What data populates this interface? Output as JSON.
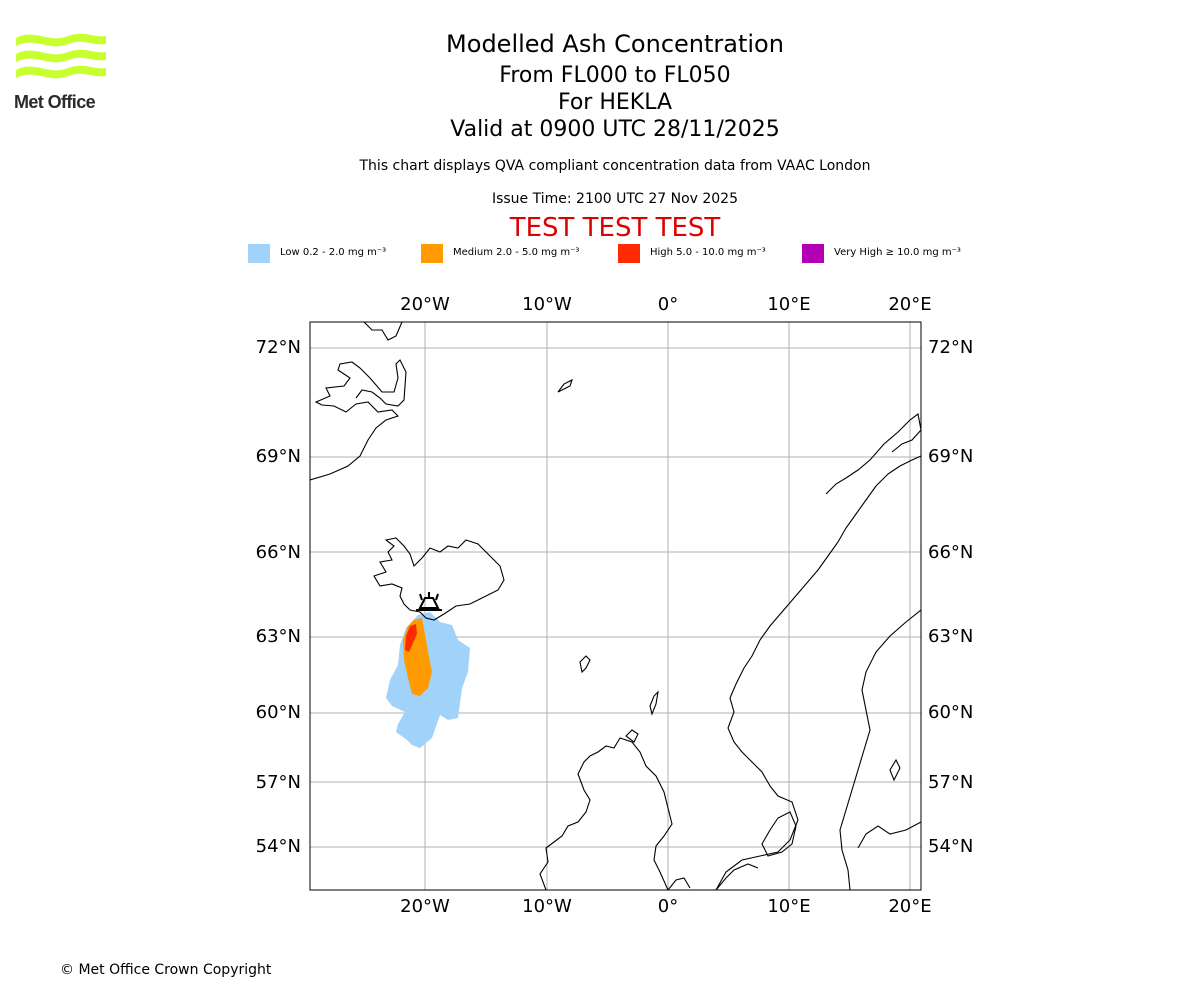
{
  "logo": {
    "name": "Met Office",
    "wave_color": "#c8ff2e"
  },
  "header": {
    "title": "Modelled Ash Concentration",
    "levels": "From FL000 to FL050",
    "volcano": "For HEKLA",
    "valid": "Valid at 0900 UTC 28/11/2025",
    "subtitle": "This chart displays QVA compliant concentration data from VAAC London",
    "issue_time": "Issue Time: 2100 UTC 27 Nov 2025",
    "test_banner": "TEST TEST TEST",
    "test_color": "#dd0000"
  },
  "legend": [
    {
      "label": "Low 0.2 - 2.0 mg m⁻³",
      "color": "#a0d2fa"
    },
    {
      "label": "Medium 2.0 - 5.0 mg m⁻³",
      "color": "#ff9a00"
    },
    {
      "label": "High 5.0 - 10.0 mg m⁻³",
      "color": "#ff2b00"
    },
    {
      "label": "Very High  ≥  10.0 mg m⁻³",
      "color": "#b400b4"
    }
  ],
  "map": {
    "lon_ticks": [
      "20°W",
      "10°W",
      "0°",
      "10°E",
      "20°E"
    ],
    "lat_ticks": [
      "72°N",
      "69°N",
      "66°N",
      "63°N",
      "60°N",
      "57°N",
      "54°N"
    ],
    "volcano_symbol": "volcano-icon",
    "grid_color": "#b0b0b0"
  },
  "footer": {
    "copyright": "© Met Office Crown Copyright"
  }
}
